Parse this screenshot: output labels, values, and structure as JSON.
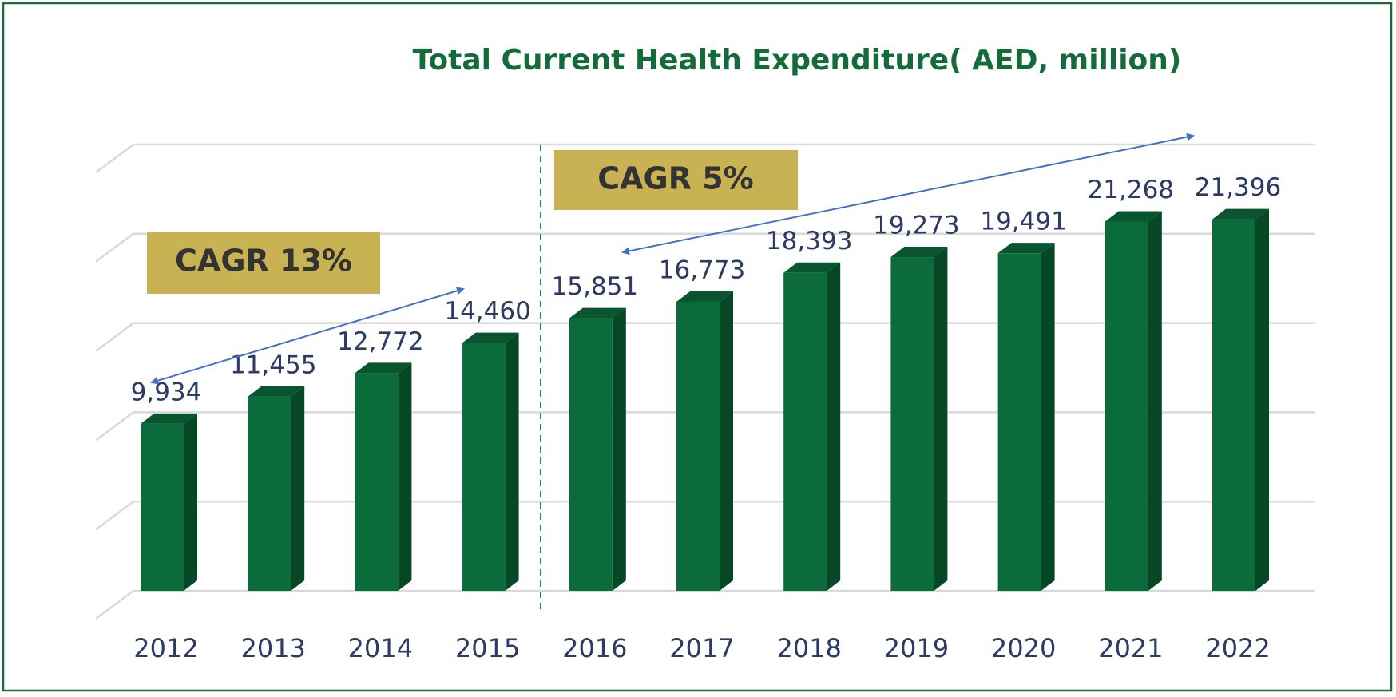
{
  "chart_data": {
    "type": "bar3d",
    "title": "Total Current Health Expenditure( AED, million)",
    "categories": [
      "2012",
      "2013",
      "2014",
      "2015",
      "2016",
      "2017",
      "2018",
      "2019",
      "2020",
      "2021",
      "2022"
    ],
    "values": [
      9934,
      11455,
      12772,
      14460,
      15851,
      16773,
      18393,
      19273,
      19491,
      21268,
      21396
    ],
    "value_labels": [
      "9,934",
      "11,455",
      "12,772",
      "14,460",
      "15,851",
      "16,773",
      "18,393",
      "19,273",
      "19,491",
      "21,268",
      "21,396"
    ],
    "color": "#0b6b3a",
    "ylim": [
      0,
      25000
    ],
    "yticks": [
      0,
      5000,
      10000,
      15000,
      20000,
      25000
    ],
    "grid": true,
    "annotations": [
      "CAGR 13%",
      "CAGR 5%"
    ]
  }
}
